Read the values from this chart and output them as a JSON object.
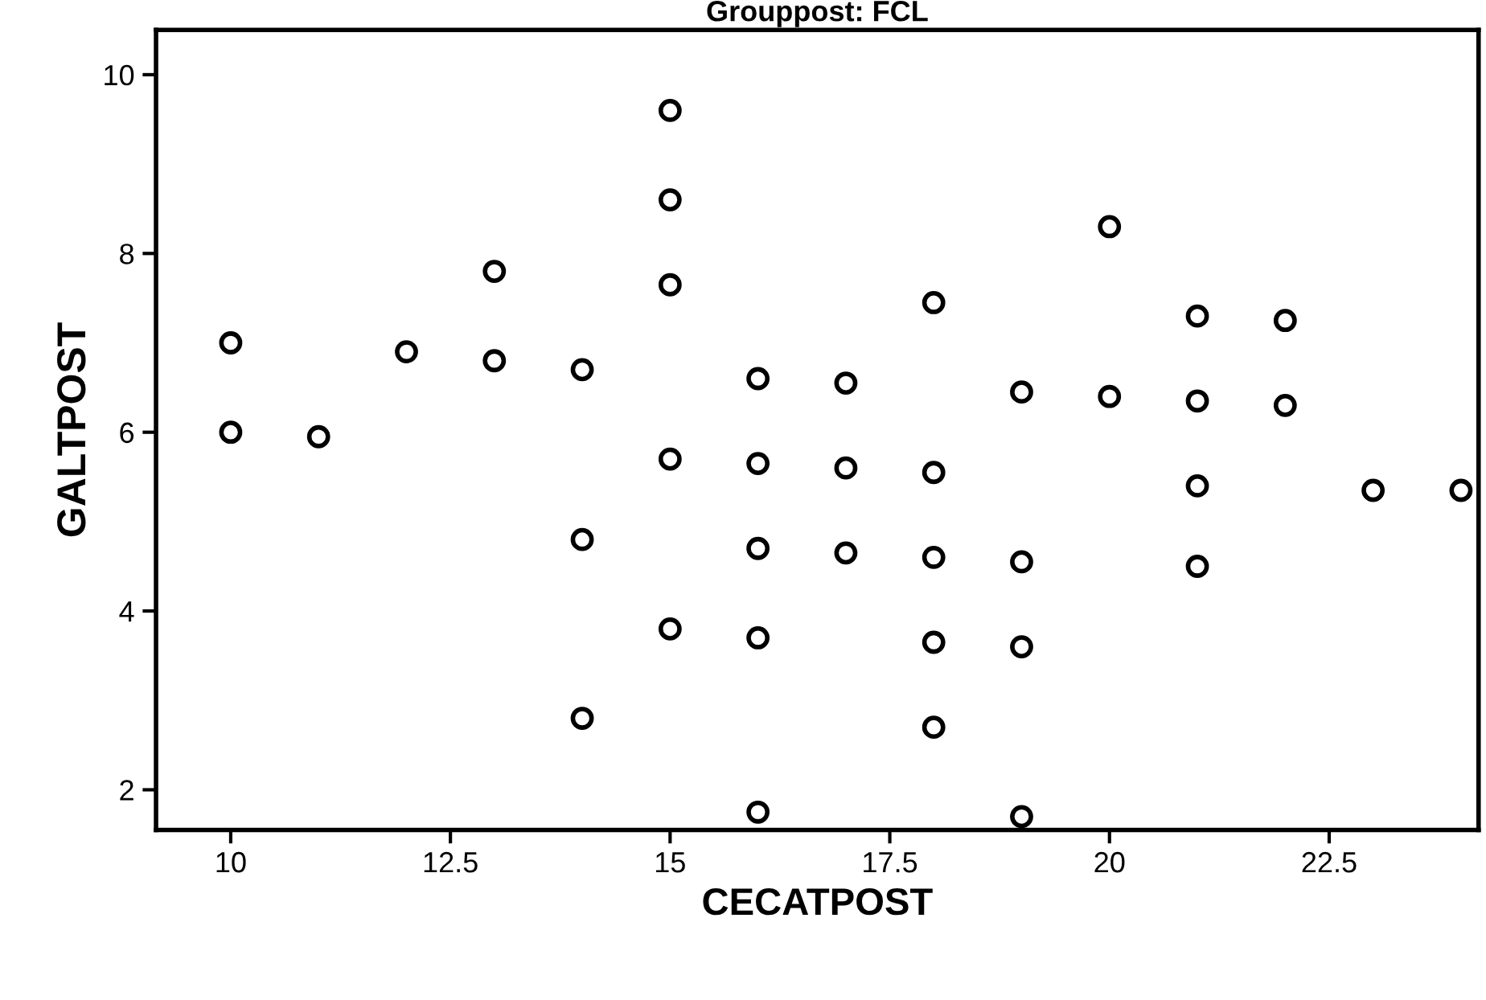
{
  "chart_data": {
    "type": "scatter",
    "title": "Grouppost: FCL",
    "xlabel": "CECATPOST",
    "ylabel": "GALTPOST",
    "marker": "circle",
    "grid": false,
    "legend": false,
    "xlim": [
      9.15,
      24.2
    ],
    "ylim": [
      1.55,
      10.5
    ],
    "xticks": [
      10,
      12.5,
      15,
      17.5,
      20,
      22.5
    ],
    "yticks": [
      2,
      4,
      6,
      8,
      10
    ],
    "series": [
      {
        "color": "#000000",
        "x": [
          10,
          10,
          11,
          12,
          13,
          13,
          14,
          14,
          14,
          15,
          15,
          15,
          15,
          15,
          16,
          16,
          16,
          16,
          16,
          17,
          17,
          17,
          18,
          18,
          18,
          18,
          18,
          19,
          19,
          19,
          19,
          20,
          20,
          21,
          21,
          21,
          21,
          22,
          22,
          23,
          24
        ],
        "values": [
          7.0,
          6.0,
          5.95,
          6.9,
          7.8,
          6.8,
          6.7,
          4.8,
          2.8,
          9.6,
          8.6,
          7.65,
          5.7,
          3.8,
          6.6,
          5.65,
          4.7,
          3.7,
          1.75,
          6.55,
          5.6,
          4.65,
          7.45,
          5.55,
          4.6,
          3.65,
          2.7,
          6.45,
          4.55,
          3.6,
          1.7,
          8.3,
          6.4,
          7.3,
          6.35,
          5.4,
          4.5,
          7.25,
          6.3,
          5.35,
          5.35
        ]
      }
    ]
  }
}
